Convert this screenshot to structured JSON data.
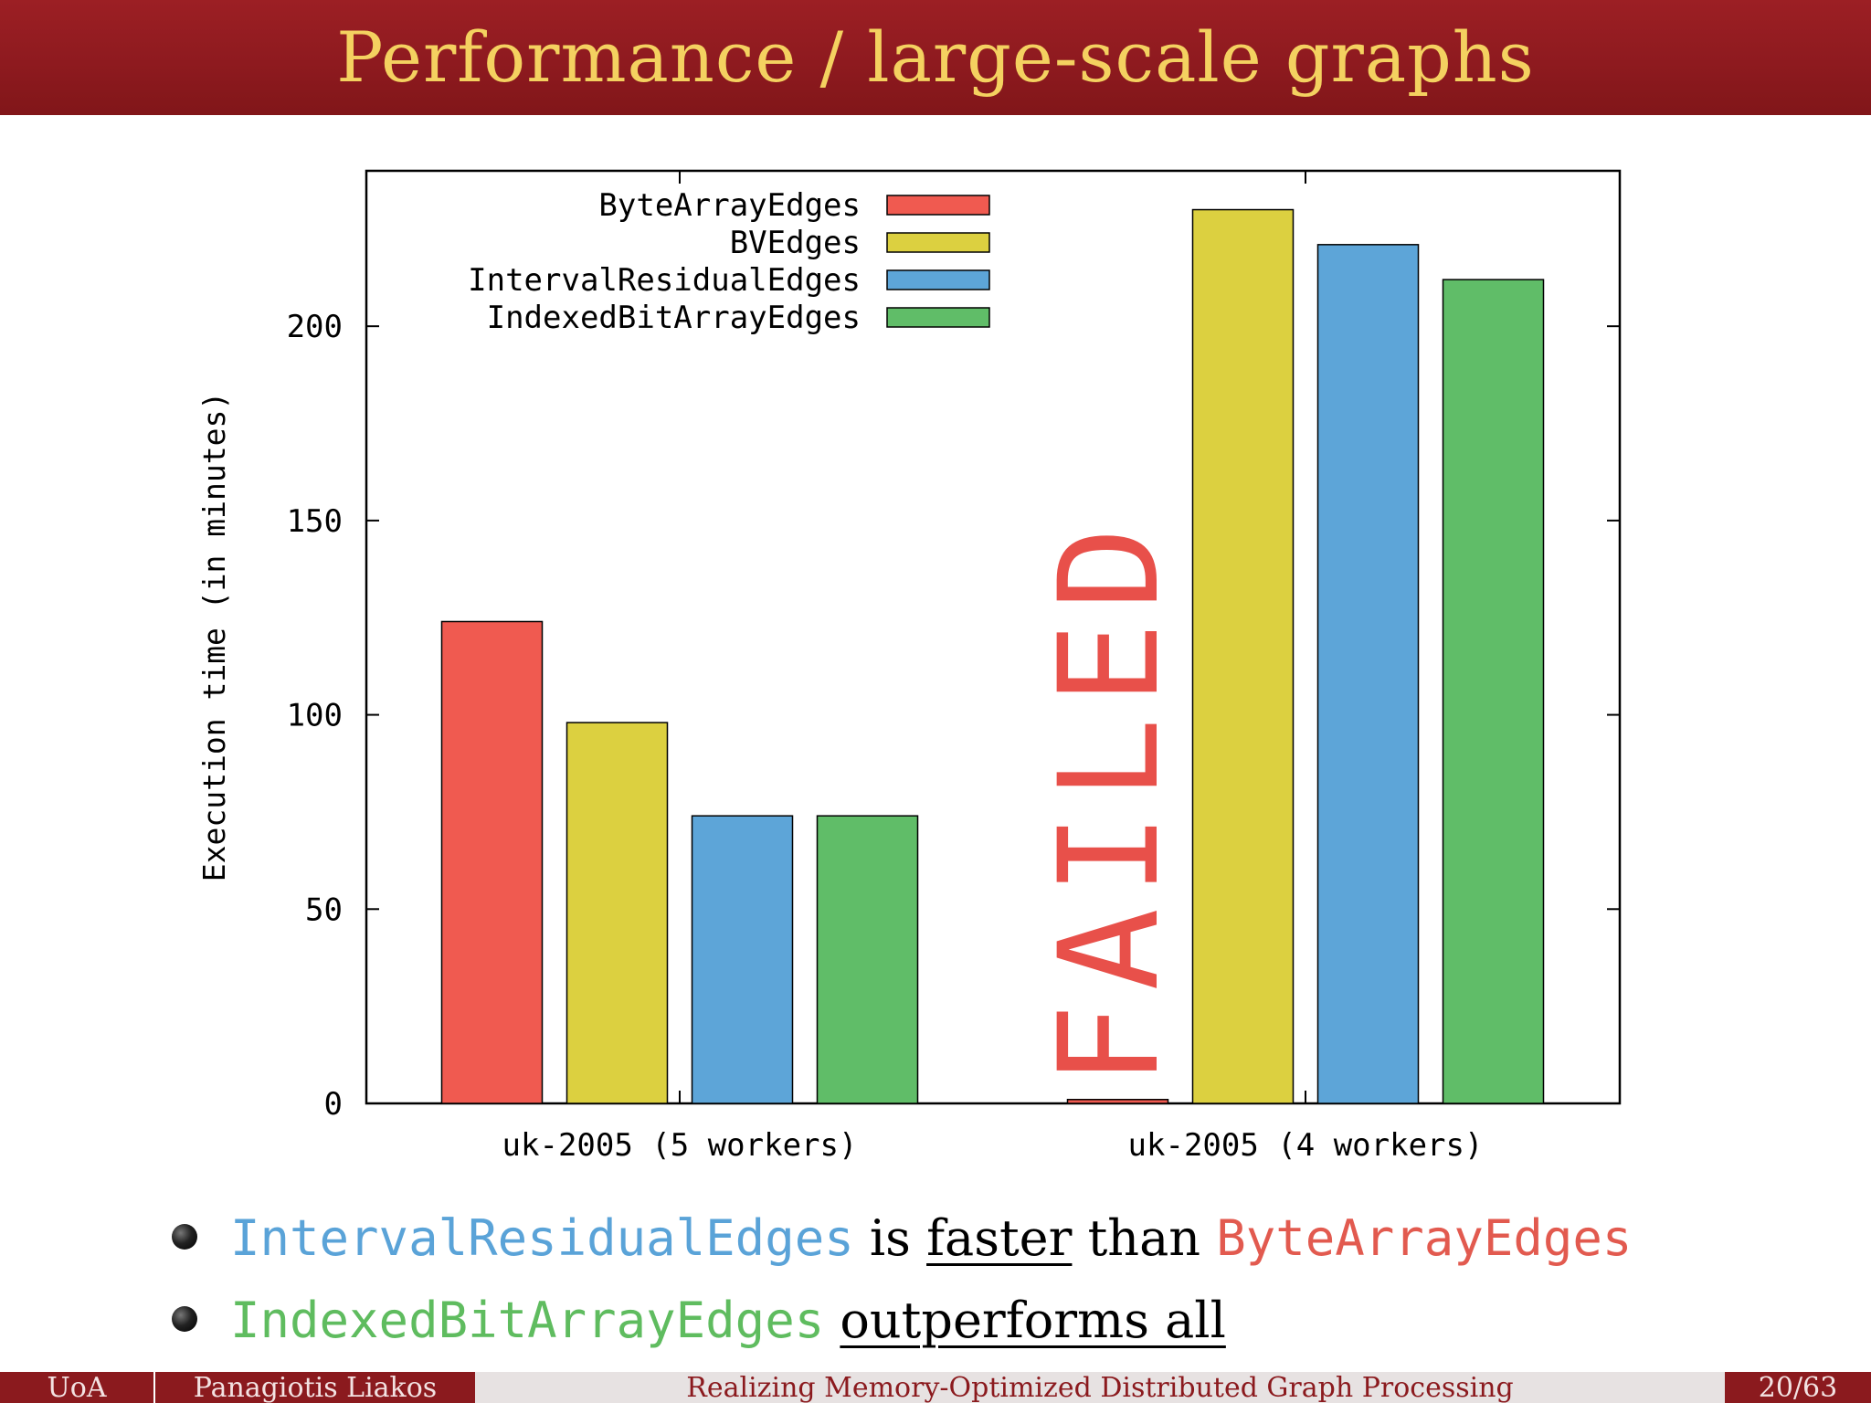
{
  "slide": {
    "title": "Performance / large-scale graphs"
  },
  "chart_data": {
    "type": "bar",
    "ylabel": "Execution time (in minutes)",
    "xlabel": "",
    "ylim": [
      0,
      240
    ],
    "yticks": [
      0,
      50,
      100,
      150,
      200
    ],
    "categories": [
      "uk-2005 (5 workers)",
      "uk-2005 (4 workers)"
    ],
    "series": [
      {
        "name": "ByteArrayEdges",
        "color": "#f05a50",
        "values": [
          124,
          1
        ]
      },
      {
        "name": "BVEdges",
        "color": "#dcd040",
        "values": [
          98,
          230
        ]
      },
      {
        "name": "IntervalResidualEdges",
        "color": "#5da5d8",
        "values": [
          74,
          221
        ]
      },
      {
        "name": "IndexedBitArrayEdges",
        "color": "#60bd68",
        "values": [
          74,
          212
        ]
      }
    ],
    "annotations": [
      {
        "text": "FAILED",
        "color": "#e8504a"
      }
    ],
    "legend_position": "top-left",
    "grid": false
  },
  "bullets": [
    {
      "parts": [
        "IntervalResidualEdges",
        "is",
        "faster",
        "than",
        "ByteArrayEdges"
      ]
    },
    {
      "parts": [
        "IndexedBitArrayEdges",
        "outperforms all"
      ]
    }
  ],
  "footer": {
    "institution": "UoA",
    "author": "Panagiotis Liakos",
    "talk_title": "Realizing Memory-Optimized Distributed Graph Processing",
    "page": "20/63"
  }
}
